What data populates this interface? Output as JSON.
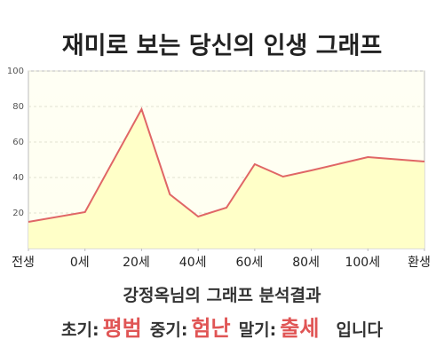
{
  "chart_data": {
    "type": "area",
    "title": "재미로 보는 당신의 인생 그래프",
    "x": [
      -20,
      0,
      20,
      30,
      40,
      50,
      60,
      70,
      80,
      100,
      120
    ],
    "values": [
      15,
      20.5,
      78.5,
      30.5,
      18,
      23,
      47.5,
      40.5,
      44,
      51.5,
      49
    ],
    "color": "#e06666",
    "fill": "#ffffc8",
    "xlim": [
      -20,
      120
    ],
    "xticks": [
      {
        "value": -20,
        "label": "전생"
      },
      {
        "value": 0,
        "label": "0세"
      },
      {
        "value": 20,
        "label": "20세"
      },
      {
        "value": 40,
        "label": "40세"
      },
      {
        "value": 60,
        "label": "60세"
      },
      {
        "value": 80,
        "label": "80세"
      },
      {
        "value": 100,
        "label": "100세"
      },
      {
        "value": 120,
        "label": "환생"
      }
    ],
    "ylim": [
      0,
      100
    ],
    "yticks": [
      20,
      40,
      60,
      80,
      100
    ],
    "grid": true
  },
  "result": {
    "heading": "강정옥님의 그래프 분석결과",
    "items": [
      {
        "label": "초기:",
        "value": "평범"
      },
      {
        "label": "중기:",
        "value": "험난"
      },
      {
        "label": "말기:",
        "value": "출세"
      }
    ],
    "suffix": "입니다"
  }
}
